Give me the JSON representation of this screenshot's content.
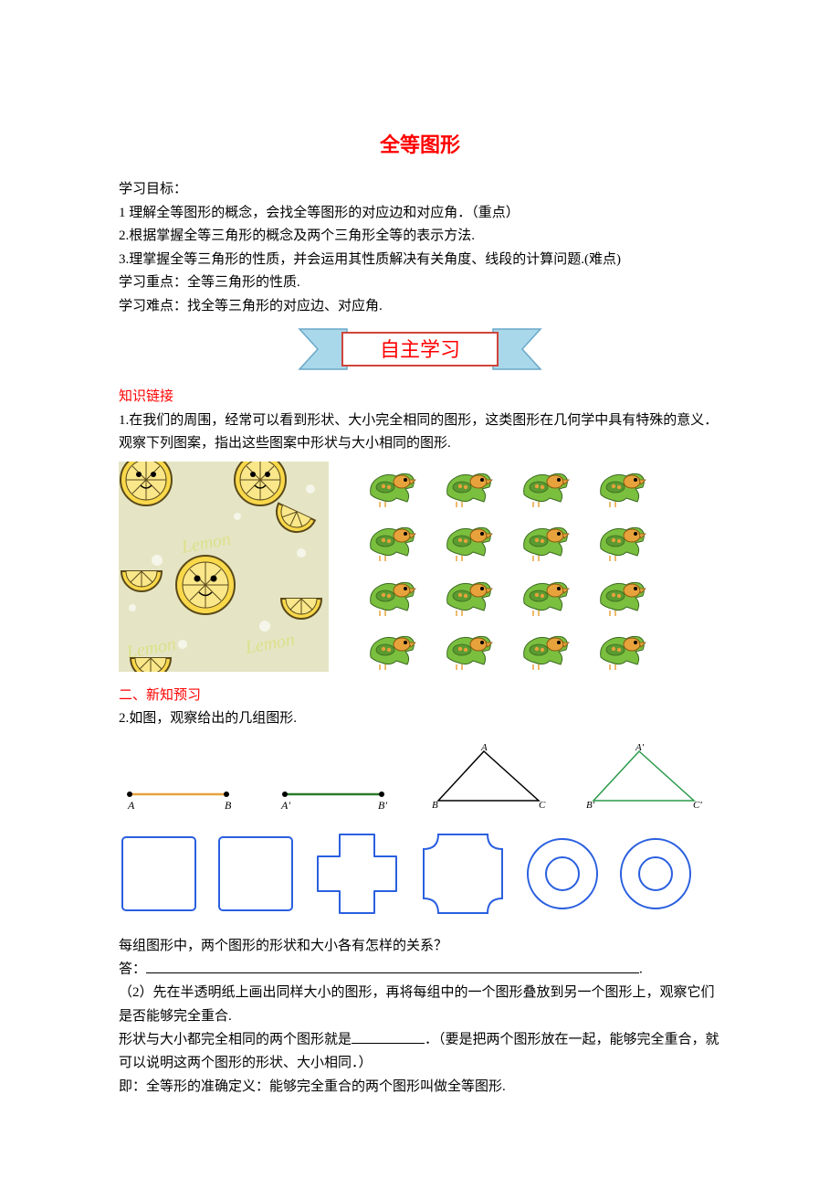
{
  "title": "全等图形",
  "goals_label": "学习目标：",
  "goal1": "1 理解全等图形的概念，会找全等图形的对应边和对应角．（重点）",
  "goal2": "2.根据掌握全等三角形的概念及两个三角形全等的表示方法.",
  "goal3": "3.理掌握全等三角形的性质，并会运用其性质解决有关角度、线段的计算问题.(难点)",
  "focus": "学习重点：全等三角形的性质.",
  "diff": "学习难点：找全等三角形的对应边、对应角.",
  "banner_text": "自主学习",
  "heading1": "知识链接",
  "p1": "1.在我们的周围，经常可以看到形状、大小完全相同的图形，这类图形在几何学中具有特殊的意义．观察下列图案，指出这些图案中形状与大小相同的图形.",
  "heading2": "二、新知预习",
  "p2": "2.如图，观察给出的几组图形.",
  "lemon": {
    "bg": "#e5e5c5",
    "text": "Lemon",
    "text_color": "#dce08a",
    "bubble_color": "#ffffff",
    "lemon_fill": "#f9d84a",
    "lemon_stroke": "#5a4a1a"
  },
  "parrot": {
    "body_color": "#7bbf3f",
    "accent_color": "#e8a23c",
    "rows": 4,
    "cols": 4
  },
  "segments": {
    "seg1": {
      "color": "#e8a23c",
      "labels": [
        "A",
        "B"
      ]
    },
    "seg2": {
      "color": "#2a7a2a",
      "labels": [
        "A'",
        "B'"
      ]
    }
  },
  "triangles": {
    "tri1": {
      "color": "#000000",
      "labels": [
        "A",
        "B",
        "C"
      ]
    },
    "tri2": {
      "color": "#2a9a4a",
      "labels": [
        "A'",
        "B'",
        "C'"
      ]
    }
  },
  "shapes": {
    "stroke": "#2a5fdf",
    "stroke_width": 2
  },
  "q1": "每组图形中，两个图形的形状和大小各有怎样的关系？",
  "q1ans_label": "答：",
  "p3a": "（2）先在半透明纸上画出同样大小的图形，再将每组中的一个图形叠放到另一个图形上，观察它们是否能够完全重合.",
  "p3b_pre": "形状与大小都完全相同的两个图形就是",
  "p3b_post": "．（要是把两个图形放在一起，能够完全重合，就可以说明这两个图形的形状、大小相同．）",
  "p4": "即：全等形的准确定义：能够完全重合的两个图形叫做全等图形."
}
